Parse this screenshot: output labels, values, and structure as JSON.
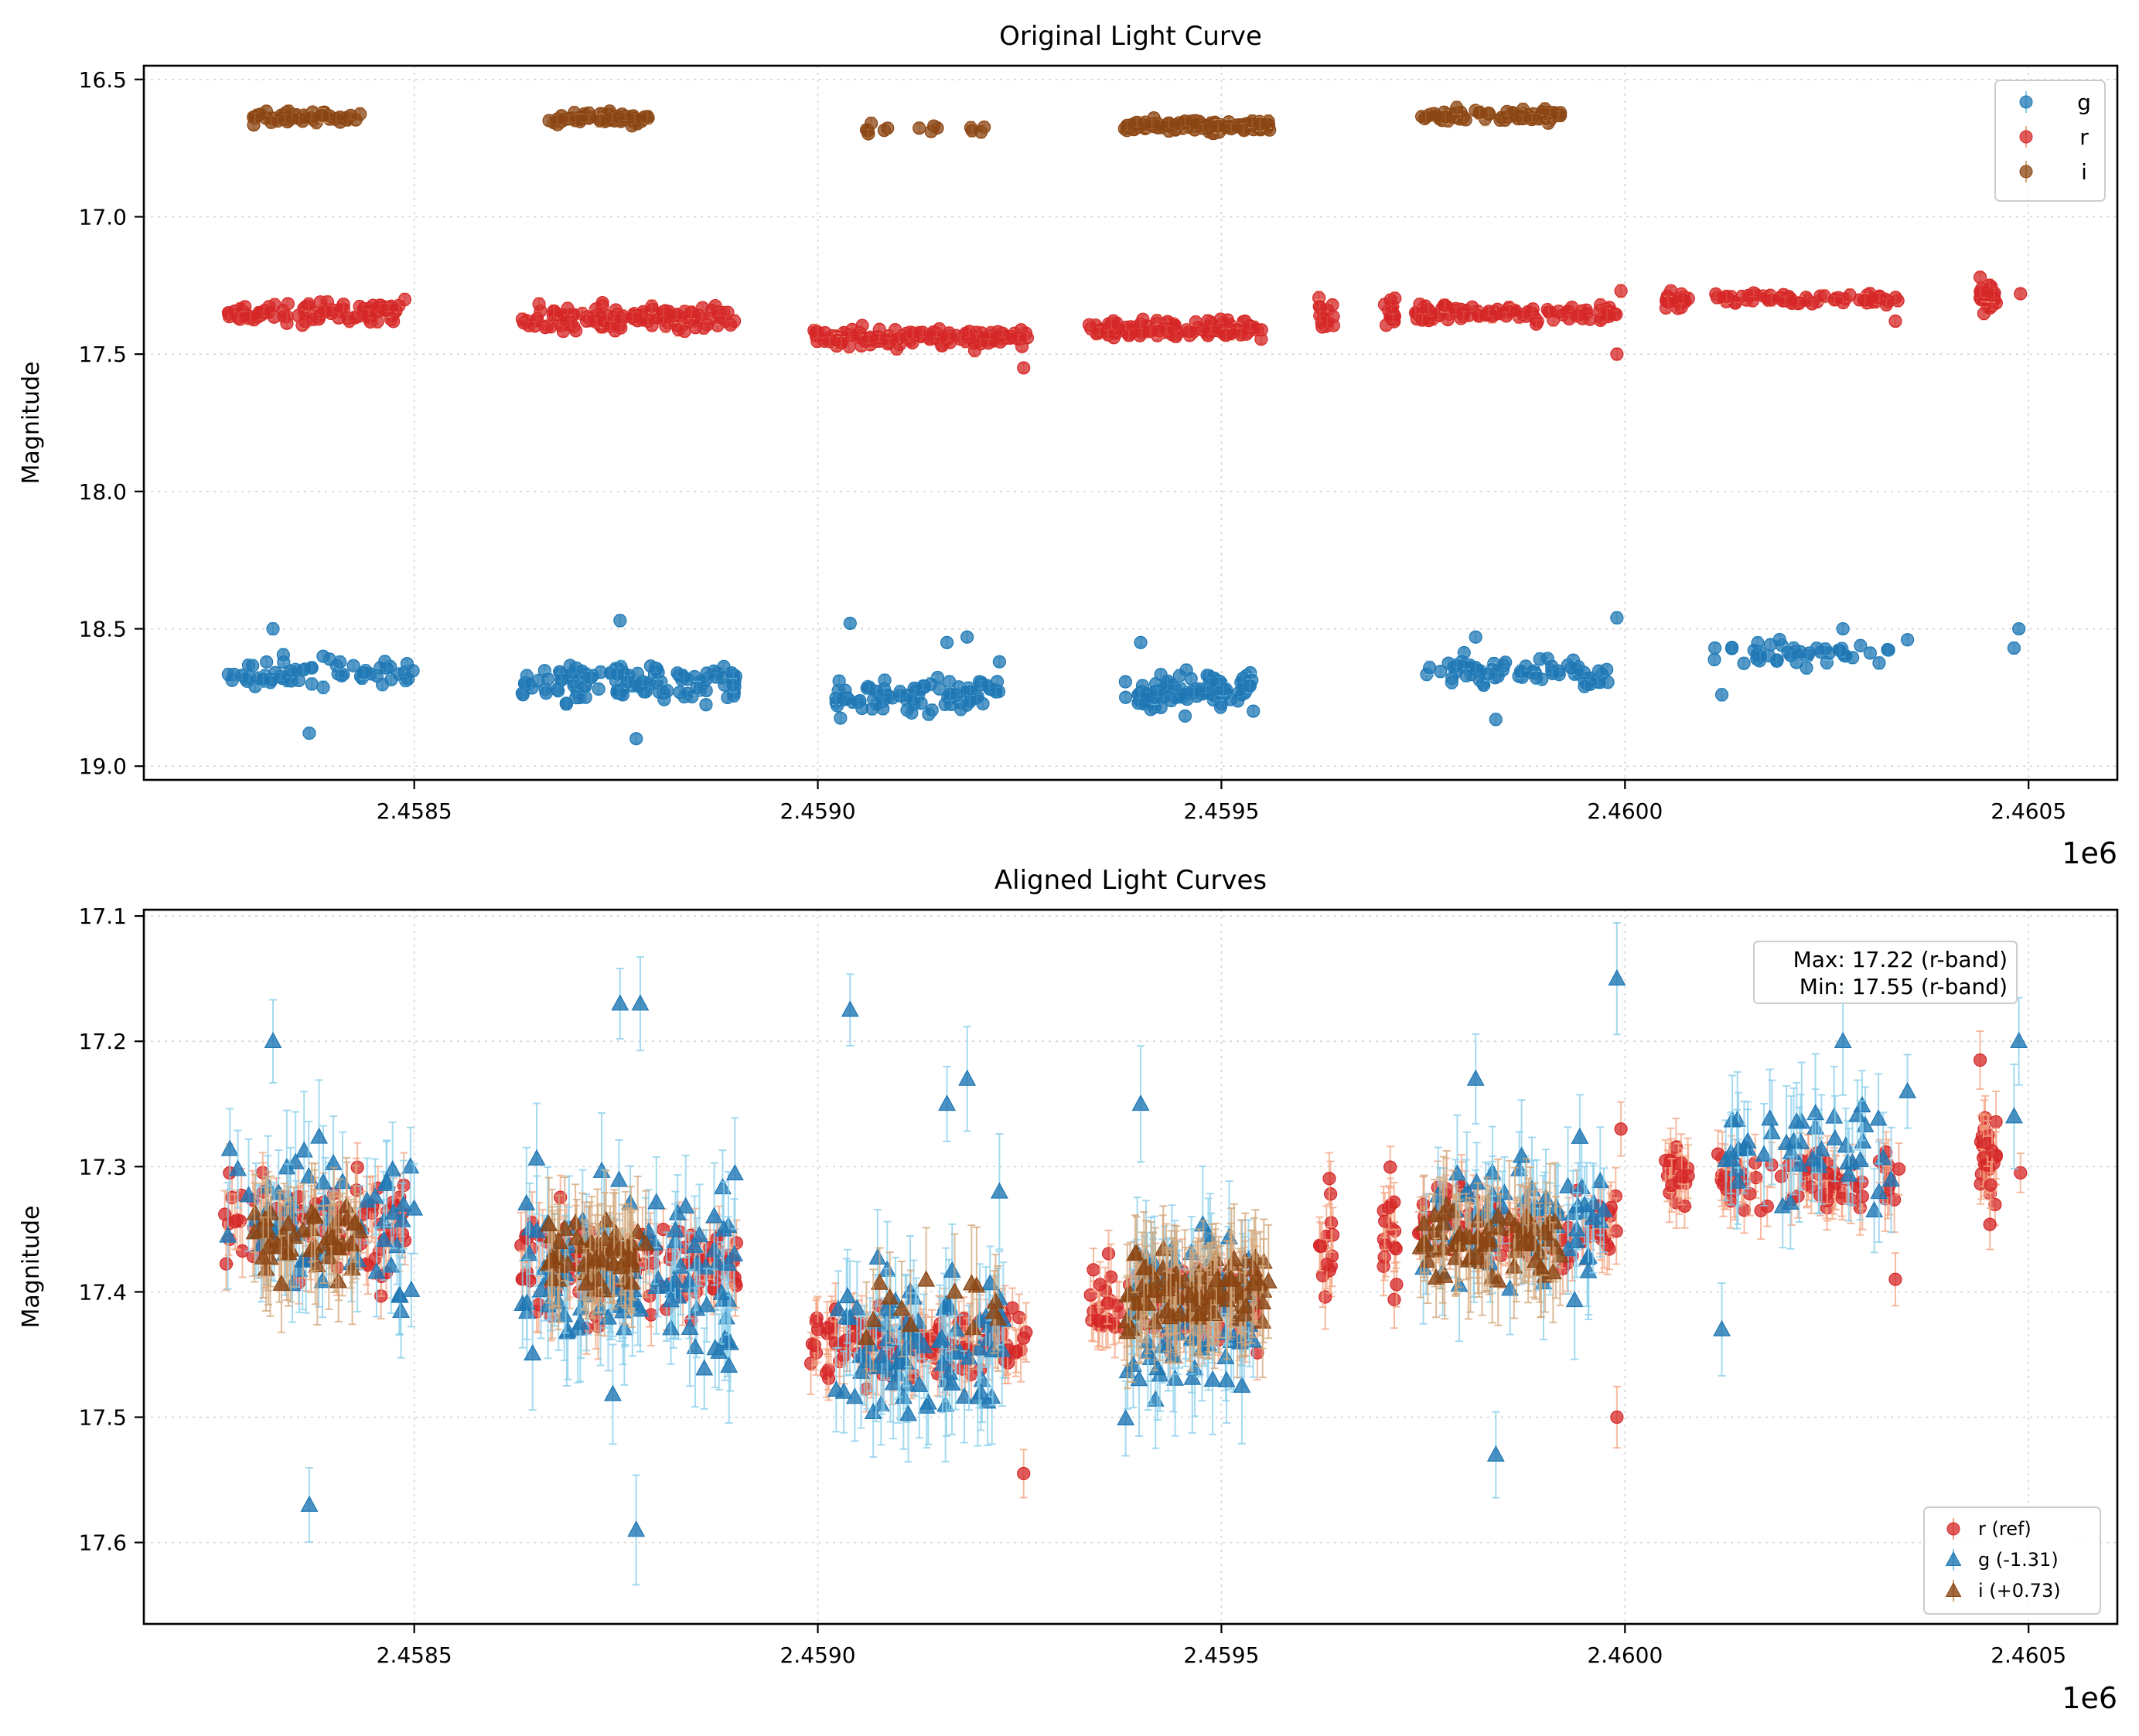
{
  "chart_data": [
    {
      "type": "scatter",
      "title": "Original Light Curve",
      "xlabel": "",
      "ylabel": "Magnitude",
      "x_offset_label": "1e6",
      "xlim": [
        2458165,
        2460610
      ],
      "ylim": [
        19.05,
        16.45
      ],
      "yinverted": true,
      "xticks": [
        2458500,
        2459000,
        2459500,
        2460000,
        2460500
      ],
      "xtick_labels": [
        "2.4585",
        "2.4590",
        "2.4595",
        "2.4600",
        "2.4605"
      ],
      "yticks": [
        16.5,
        17.0,
        17.5,
        18.0,
        18.5,
        19.0
      ],
      "ytick_labels": [
        "16.5",
        "17.0",
        "17.5",
        "18.0",
        "18.5",
        "19.0"
      ],
      "grid": true,
      "legend_position": "upper right",
      "series": [
        {
          "name": "g",
          "marker": "circle",
          "color": "#1f77b4",
          "errorbar_color": "#87ceeb",
          "description": "Approx. clumps of observations (data units)",
          "clumps": [
            {
              "x_start": 2458265,
              "x_end": 2458500,
              "y_center": 18.66,
              "y_spread": 0.06,
              "count": 60
            },
            {
              "x_start": 2458630,
              "x_end": 2458900,
              "y_center": 18.69,
              "y_spread": 0.07,
              "count": 110
            },
            {
              "x_start": 2459020,
              "x_end": 2459230,
              "y_center": 18.75,
              "y_spread": 0.06,
              "count": 85
            },
            {
              "x_start": 2459380,
              "x_end": 2459540,
              "y_center": 18.73,
              "y_spread": 0.06,
              "count": 95
            },
            {
              "x_start": 2459750,
              "x_end": 2459980,
              "y_center": 18.66,
              "y_spread": 0.05,
              "count": 70
            },
            {
              "x_start": 2460110,
              "x_end": 2460330,
              "y_center": 18.59,
              "y_spread": 0.04,
              "count": 45
            }
          ],
          "outliers": [
            {
              "x": 2458370,
              "y": 18.88
            },
            {
              "x": 2458325,
              "y": 18.5
            },
            {
              "x": 2458775,
              "y": 18.9
            },
            {
              "x": 2458755,
              "y": 18.47
            },
            {
              "x": 2459040,
              "y": 18.48
            },
            {
              "x": 2459160,
              "y": 18.55
            },
            {
              "x": 2459185,
              "y": 18.53
            },
            {
              "x": 2459225,
              "y": 18.62
            },
            {
              "x": 2459400,
              "y": 18.55
            },
            {
              "x": 2459840,
              "y": 18.83
            },
            {
              "x": 2459815,
              "y": 18.53
            },
            {
              "x": 2459990,
              "y": 18.46
            },
            {
              "x": 2460120,
              "y": 18.74
            },
            {
              "x": 2460270,
              "y": 18.5
            },
            {
              "x": 2460350,
              "y": 18.54
            },
            {
              "x": 2460482,
              "y": 18.57
            },
            {
              "x": 2460488,
              "y": 18.5
            }
          ]
        },
        {
          "name": "r",
          "marker": "circle",
          "color": "#d62728",
          "errorbar_color": "#f4a582",
          "clumps": [
            {
              "x_start": 2458265,
              "x_end": 2458490,
              "y_center": 17.35,
              "y_spread": 0.04,
              "count": 90
            },
            {
              "x_start": 2458630,
              "x_end": 2458900,
              "y_center": 17.37,
              "y_spread": 0.04,
              "count": 120
            },
            {
              "x_start": 2458990,
              "x_end": 2459260,
              "y_center": 17.44,
              "y_spread": 0.03,
              "count": 130
            },
            {
              "x_start": 2459335,
              "x_end": 2459550,
              "y_center": 17.41,
              "y_spread": 0.03,
              "count": 110
            },
            {
              "x_start": 2459620,
              "x_end": 2459640,
              "y_center": 17.36,
              "y_spread": 0.05,
              "count": 14
            },
            {
              "x_start": 2459700,
              "x_end": 2459720,
              "y_center": 17.35,
              "y_spread": 0.05,
              "count": 16
            },
            {
              "x_start": 2459740,
              "x_end": 2459990,
              "y_center": 17.35,
              "y_spread": 0.03,
              "count": 100
            },
            {
              "x_start": 2460050,
              "x_end": 2460080,
              "y_center": 17.3,
              "y_spread": 0.03,
              "count": 20
            },
            {
              "x_start": 2460110,
              "x_end": 2460340,
              "y_center": 17.3,
              "y_spread": 0.02,
              "count": 70
            },
            {
              "x_start": 2460440,
              "x_end": 2460460,
              "y_center": 17.29,
              "y_spread": 0.04,
              "count": 28
            }
          ],
          "outliers": [
            {
              "x": 2459000,
              "y": 17.42
            },
            {
              "x": 2459255,
              "y": 17.55
            },
            {
              "x": 2459990,
              "y": 17.5
            },
            {
              "x": 2459995,
              "y": 17.27
            },
            {
              "x": 2460335,
              "y": 17.38
            },
            {
              "x": 2460490,
              "y": 17.28
            },
            {
              "x": 2460440,
              "y": 17.22
            }
          ]
        },
        {
          "name": "i",
          "marker": "circle",
          "color": "#8b4513",
          "errorbar_color": "#d2a679",
          "clumps": [
            {
              "x_start": 2458300,
              "x_end": 2458435,
              "y_center": 16.64,
              "y_spread": 0.02,
              "count": 50
            },
            {
              "x_start": 2458665,
              "x_end": 2458790,
              "y_center": 16.64,
              "y_spread": 0.02,
              "count": 60
            },
            {
              "x_start": 2459060,
              "x_end": 2459230,
              "y_center": 16.68,
              "y_spread": 0.02,
              "count": 14
            },
            {
              "x_start": 2459380,
              "x_end": 2459560,
              "y_center": 16.67,
              "y_spread": 0.02,
              "count": 110
            },
            {
              "x_start": 2459745,
              "x_end": 2459920,
              "y_center": 16.63,
              "y_spread": 0.02,
              "count": 70
            }
          ],
          "outliers": []
        }
      ]
    },
    {
      "type": "scatter",
      "title": "Aligned Light Curves",
      "xlabel": "",
      "ylabel": "Magnitude",
      "x_offset_label": "1e6",
      "xlim": [
        2458165,
        2460610
      ],
      "ylim": [
        17.665,
        17.095
      ],
      "yinverted": true,
      "xticks": [
        2458500,
        2459000,
        2459500,
        2460000,
        2460500
      ],
      "xtick_labels": [
        "2.4585",
        "2.4590",
        "2.4595",
        "2.4600",
        "2.4605"
      ],
      "yticks": [
        17.1,
        17.2,
        17.3,
        17.4,
        17.5,
        17.6
      ],
      "ytick_labels": [
        "17.1",
        "17.2",
        "17.3",
        "17.4",
        "17.5",
        "17.6"
      ],
      "grid": true,
      "legend_position": "lower right",
      "annotation": {
        "position": "upper right",
        "lines": [
          "Max: 17.22 (r-band)",
          "Min: 17.55 (r-band)"
        ]
      },
      "series": [
        {
          "name": "r (ref)",
          "marker": "circle",
          "color": "#d62728",
          "errorbar_color": "#f4a582",
          "clumps": [
            {
              "x_start": 2458265,
              "x_end": 2458490,
              "y_center": 17.35,
              "y_spread": 0.035,
              "count": 90
            },
            {
              "x_start": 2458630,
              "x_end": 2458900,
              "y_center": 17.38,
              "y_spread": 0.035,
              "count": 120
            },
            {
              "x_start": 2458990,
              "x_end": 2459260,
              "y_center": 17.44,
              "y_spread": 0.025,
              "count": 130
            },
            {
              "x_start": 2459335,
              "x_end": 2459550,
              "y_center": 17.41,
              "y_spread": 0.03,
              "count": 110
            },
            {
              "x_start": 2459620,
              "x_end": 2459640,
              "y_center": 17.36,
              "y_spread": 0.045,
              "count": 14
            },
            {
              "x_start": 2459700,
              "x_end": 2459720,
              "y_center": 17.35,
              "y_spread": 0.045,
              "count": 16
            },
            {
              "x_start": 2459740,
              "x_end": 2459990,
              "y_center": 17.35,
              "y_spread": 0.025,
              "count": 100
            },
            {
              "x_start": 2460050,
              "x_end": 2460080,
              "y_center": 17.31,
              "y_spread": 0.03,
              "count": 20
            },
            {
              "x_start": 2460110,
              "x_end": 2460340,
              "y_center": 17.31,
              "y_spread": 0.02,
              "count": 70
            },
            {
              "x_start": 2460440,
              "x_end": 2460460,
              "y_center": 17.29,
              "y_spread": 0.035,
              "count": 28
            }
          ],
          "outliers": [
            {
              "x": 2459000,
              "y": 17.43
            },
            {
              "x": 2459255,
              "y": 17.545
            },
            {
              "x": 2459990,
              "y": 17.5
            },
            {
              "x": 2459995,
              "y": 17.27
            },
            {
              "x": 2460335,
              "y": 17.39
            },
            {
              "x": 2460490,
              "y": 17.305
            },
            {
              "x": 2460440,
              "y": 17.215
            }
          ]
        },
        {
          "name": "g (-1.31)",
          "marker": "triangle",
          "color": "#1f77b4",
          "errorbar_color": "#87ceeb",
          "clumps": [
            {
              "x_start": 2458265,
              "x_end": 2458500,
              "y_center": 17.35,
              "y_spread": 0.06,
              "count": 60
            },
            {
              "x_start": 2458630,
              "x_end": 2458900,
              "y_center": 17.38,
              "y_spread": 0.07,
              "count": 110
            },
            {
              "x_start": 2459020,
              "x_end": 2459230,
              "y_center": 17.44,
              "y_spread": 0.06,
              "count": 85
            },
            {
              "x_start": 2459380,
              "x_end": 2459540,
              "y_center": 17.42,
              "y_spread": 0.06,
              "count": 95
            },
            {
              "x_start": 2459750,
              "x_end": 2459980,
              "y_center": 17.35,
              "y_spread": 0.05,
              "count": 70
            },
            {
              "x_start": 2460110,
              "x_end": 2460330,
              "y_center": 17.29,
              "y_spread": 0.04,
              "count": 45
            }
          ],
          "outliers": [
            {
              "x": 2458370,
              "y": 17.57
            },
            {
              "x": 2458325,
              "y": 17.2
            },
            {
              "x": 2458775,
              "y": 17.59
            },
            {
              "x": 2458755,
              "y": 17.17
            },
            {
              "x": 2458780,
              "y": 17.17
            },
            {
              "x": 2459040,
              "y": 17.175
            },
            {
              "x": 2459160,
              "y": 17.25
            },
            {
              "x": 2459185,
              "y": 17.23
            },
            {
              "x": 2459225,
              "y": 17.32
            },
            {
              "x": 2459400,
              "y": 17.25
            },
            {
              "x": 2459840,
              "y": 17.53
            },
            {
              "x": 2459815,
              "y": 17.23
            },
            {
              "x": 2459990,
              "y": 17.15
            },
            {
              "x": 2460120,
              "y": 17.43
            },
            {
              "x": 2460270,
              "y": 17.2
            },
            {
              "x": 2460350,
              "y": 17.24
            },
            {
              "x": 2460482,
              "y": 17.26
            },
            {
              "x": 2460488,
              "y": 17.2
            }
          ]
        },
        {
          "name": "i (+0.73)",
          "marker": "triangle",
          "color": "#8b4513",
          "errorbar_color": "#d2a679",
          "clumps": [
            {
              "x_start": 2458300,
              "x_end": 2458435,
              "y_center": 17.36,
              "y_spread": 0.025,
              "count": 50
            },
            {
              "x_start": 2458665,
              "x_end": 2458790,
              "y_center": 17.37,
              "y_spread": 0.025,
              "count": 60
            },
            {
              "x_start": 2459060,
              "x_end": 2459230,
              "y_center": 17.41,
              "y_spread": 0.025,
              "count": 14
            },
            {
              "x_start": 2459380,
              "x_end": 2459560,
              "y_center": 17.4,
              "y_spread": 0.025,
              "count": 110
            },
            {
              "x_start": 2459745,
              "x_end": 2459920,
              "y_center": 17.36,
              "y_spread": 0.025,
              "count": 70
            }
          ],
          "outliers": []
        }
      ]
    }
  ]
}
